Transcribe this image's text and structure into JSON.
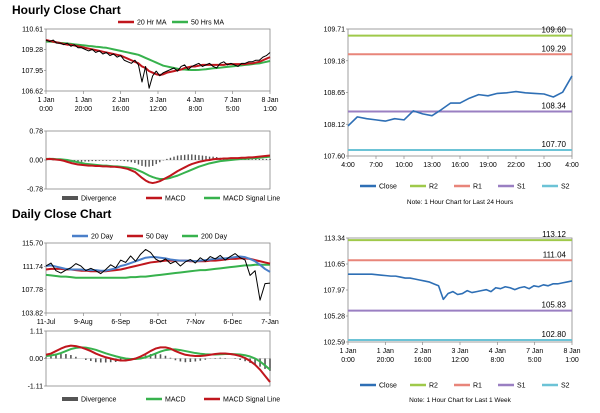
{
  "sections": {
    "hourly_title": "Hourly Close Chart",
    "daily_title": "Daily Close Chart"
  },
  "colors": {
    "close": "#2e6fb5",
    "ma_red": "#c0161d",
    "ma_green": "#37b24d",
    "ma_blue": "#4a7fc9",
    "r2": "#9fc94a",
    "r1": "#e8857a",
    "s1": "#9a7fc2",
    "s2": "#6cc3d6",
    "divergence": "#555555",
    "macd": "#c0161d",
    "signal": "#37b24d",
    "price_black": "#000000"
  },
  "chart_data": [
    {
      "id": "hourly_price",
      "type": "line",
      "ylim": [
        106.62,
        110.61
      ],
      "yticks": [
        "110.61",
        "109.28",
        "107.95",
        "106.62"
      ],
      "xticks": [
        "1 Jan\n0:00",
        "1 Jan\n20:00",
        "2 Jan\n16:00",
        "3 Jan\n12:00",
        "4 Jan\n8:00",
        "7 Jan\n5:00",
        "8 Jan\n1:00"
      ],
      "legend": [
        "20 Hr MA",
        "50 Hrs MA"
      ],
      "series": [
        {
          "name": "Price",
          "values": [
            109.9,
            109.8,
            109.9,
            109.7,
            109.7,
            109.6,
            109.7,
            109.5,
            109.6,
            109.4,
            109.4,
            109.3,
            109.2,
            109.3,
            109.1,
            109.2,
            109.0,
            109.1,
            108.9,
            109.0,
            108.8,
            108.9,
            108.6,
            108.5,
            108.4,
            108.6,
            108.3,
            107.2,
            108.2,
            106.8,
            107.6,
            107.9,
            107.6,
            107.8,
            107.9,
            108.0,
            108.1,
            107.9,
            108.2,
            108.3,
            108.0,
            108.2,
            108.3,
            108.4,
            108.2,
            108.3,
            108.4,
            108.2,
            108.1,
            108.4,
            108.5,
            108.3,
            108.4,
            108.3,
            108.2,
            108.4,
            108.4,
            108.5,
            108.5,
            108.6,
            108.6,
            108.8,
            108.9,
            109.1
          ]
        },
        {
          "name": "20 Hr MA",
          "values": [
            109.9,
            109.85,
            109.8,
            109.75,
            109.7,
            109.65,
            109.6,
            109.6,
            109.55,
            109.5,
            109.45,
            109.4,
            109.35,
            109.3,
            109.25,
            109.2,
            109.15,
            109.1,
            109.05,
            109.0,
            108.95,
            108.9,
            108.8,
            108.7,
            108.6,
            108.5,
            108.4,
            108.2,
            108.1,
            107.9,
            107.8,
            107.7,
            107.65,
            107.7,
            107.8,
            107.85,
            107.9,
            107.95,
            108.0,
            108.1,
            108.15,
            108.2,
            108.2,
            108.25,
            108.3,
            108.3,
            108.3,
            108.3,
            108.3,
            108.3,
            108.3,
            108.35,
            108.35,
            108.35,
            108.35,
            108.35,
            108.35,
            108.4,
            108.4,
            108.45,
            108.5,
            108.6,
            108.7,
            108.8
          ]
        },
        {
          "name": "50 Hrs MA",
          "values": [
            109.8,
            109.8,
            109.78,
            109.75,
            109.72,
            109.7,
            109.68,
            109.65,
            109.62,
            109.6,
            109.57,
            109.55,
            109.52,
            109.5,
            109.47,
            109.45,
            109.42,
            109.4,
            109.35,
            109.3,
            109.25,
            109.2,
            109.15,
            109.1,
            109.05,
            109.0,
            108.95,
            108.85,
            108.75,
            108.65,
            108.55,
            108.45,
            108.35,
            108.25,
            108.2,
            108.15,
            108.1,
            108.05,
            108.0,
            108.0,
            107.98,
            107.97,
            107.97,
            107.98,
            108.0,
            108.02,
            108.05,
            108.08,
            108.1,
            108.12,
            108.15,
            108.17,
            108.2,
            108.22,
            108.25,
            108.27,
            108.3,
            108.32,
            108.35,
            108.38,
            108.4,
            108.45,
            108.5,
            108.55
          ]
        }
      ]
    },
    {
      "id": "hourly_macd",
      "type": "line",
      "ylim": [
        -0.78,
        0.78
      ],
      "yticks": [
        "0.78",
        "0.00",
        "-0.78"
      ],
      "legend": [
        "Divergence",
        "MACD",
        "MACD Signal Line"
      ],
      "series": [
        {
          "name": "MACD",
          "values": [
            0.02,
            0.03,
            0.02,
            0.01,
            0.0,
            -0.02,
            -0.05,
            -0.08,
            -0.1,
            -0.12,
            -0.13,
            -0.14,
            -0.15,
            -0.15,
            -0.16,
            -0.16,
            -0.17,
            -0.17,
            -0.18,
            -0.18,
            -0.19,
            -0.2,
            -0.22,
            -0.24,
            -0.28,
            -0.32,
            -0.4,
            -0.48,
            -0.55,
            -0.6,
            -0.62,
            -0.6,
            -0.57,
            -0.52,
            -0.47,
            -0.42,
            -0.36,
            -0.3,
            -0.25,
            -0.2,
            -0.15,
            -0.11,
            -0.08,
            -0.05,
            -0.03,
            -0.01,
            0.0,
            0.02,
            0.03,
            0.03,
            0.04,
            0.04,
            0.05,
            0.05,
            0.05,
            0.06,
            0.06,
            0.07,
            0.07,
            0.08,
            0.09,
            0.1,
            0.11,
            0.12
          ]
        },
        {
          "name": "MACD Signal Line",
          "values": [
            0.03,
            0.03,
            0.03,
            0.02,
            0.02,
            0.01,
            0.0,
            -0.02,
            -0.04,
            -0.06,
            -0.08,
            -0.1,
            -0.11,
            -0.12,
            -0.13,
            -0.14,
            -0.15,
            -0.15,
            -0.16,
            -0.17,
            -0.17,
            -0.18,
            -0.19,
            -0.2,
            -0.22,
            -0.24,
            -0.28,
            -0.32,
            -0.37,
            -0.42,
            -0.46,
            -0.49,
            -0.51,
            -0.51,
            -0.5,
            -0.48,
            -0.45,
            -0.42,
            -0.38,
            -0.34,
            -0.3,
            -0.26,
            -0.22,
            -0.18,
            -0.15,
            -0.12,
            -0.09,
            -0.07,
            -0.05,
            -0.03,
            -0.02,
            -0.01,
            0.0,
            0.01,
            0.02,
            0.03,
            0.03,
            0.04,
            0.05,
            0.05,
            0.06,
            0.07,
            0.08,
            0.09
          ]
        }
      ]
    },
    {
      "id": "hourly_24h",
      "type": "line",
      "ylim": [
        107.6,
        109.71
      ],
      "yticks": [
        "109.71",
        "109.18",
        "108.65",
        "108.12",
        "107.60"
      ],
      "xticks": [
        "4:00",
        "7:00",
        "10:00",
        "13:00",
        "16:00",
        "19:00",
        "22:00",
        "1:00",
        "4:00"
      ],
      "legend": [
        "Close",
        "R2",
        "R1",
        "S1",
        "S2"
      ],
      "levels": {
        "R2": 109.6,
        "R1": 109.29,
        "S1": 108.34,
        "S2": 107.7
      },
      "level_labels": {
        "R2": "109.60",
        "R1": "109.29",
        "S1": "108.34",
        "S2": "107.70"
      },
      "note": "Note: 1 Hour Chart for Last 24 Hours",
      "series": [
        {
          "name": "Close",
          "values": [
            108.1,
            108.25,
            108.22,
            108.2,
            108.18,
            108.22,
            108.2,
            108.35,
            108.3,
            108.27,
            108.37,
            108.48,
            108.48,
            108.56,
            108.62,
            108.6,
            108.64,
            108.65,
            108.67,
            108.65,
            108.64,
            108.63,
            108.58,
            108.66,
            108.93
          ]
        }
      ]
    },
    {
      "id": "daily_price",
      "type": "line",
      "ylim": [
        103.82,
        115.7
      ],
      "yticks": [
        "115.70",
        "111.74",
        "107.78",
        "103.82"
      ],
      "xticks": [
        "11-Jul",
        "9-Aug",
        "6-Sep",
        "8-Oct",
        "7-Nov",
        "6-Dec",
        "7-Jan"
      ],
      "legend": [
        "20 Day",
        "50 Day",
        "200 Day"
      ],
      "series": [
        {
          "name": "Price",
          "values": [
            111.8,
            112.3,
            111.0,
            110.6,
            111.1,
            111.5,
            112.2,
            111.8,
            111.0,
            111.4,
            111.0,
            110.5,
            111.2,
            112.0,
            111.5,
            112.8,
            112.4,
            113.5,
            112.6,
            113.8,
            114.6,
            114.1,
            113.0,
            112.5,
            113.0,
            112.2,
            112.6,
            111.8,
            112.5,
            112.9,
            112.3,
            113.2,
            112.6,
            113.4,
            113.0,
            113.6,
            112.8,
            113.4,
            113.9,
            113.2,
            112.8,
            110.2,
            111.0,
            106.0,
            108.8,
            108.9
          ]
        },
        {
          "name": "20 Day",
          "values": [
            111.8,
            111.9,
            111.7,
            111.5,
            111.3,
            111.2,
            111.2,
            111.2,
            111.1,
            111.1,
            111.1,
            111.0,
            111.0,
            111.2,
            111.4,
            111.8,
            112.0,
            112.3,
            112.6,
            112.9,
            113.2,
            113.3,
            113.3,
            113.2,
            113.1,
            112.9,
            112.8,
            112.7,
            112.7,
            112.7,
            112.6,
            112.7,
            112.8,
            112.9,
            113.0,
            113.1,
            113.1,
            113.2,
            113.3,
            113.4,
            113.3,
            113.0,
            112.6,
            112.0,
            111.3,
            110.8
          ]
        },
        {
          "name": "50 Day",
          "values": [
            111.2,
            111.3,
            111.3,
            111.3,
            111.2,
            111.2,
            111.1,
            111.0,
            111.0,
            110.9,
            110.9,
            110.9,
            110.9,
            111.0,
            111.1,
            111.2,
            111.4,
            111.6,
            111.8,
            112.0,
            112.2,
            112.4,
            112.5,
            112.6,
            112.7,
            112.7,
            112.7,
            112.7,
            112.7,
            112.6,
            112.6,
            112.6,
            112.6,
            112.7,
            112.7,
            112.8,
            112.9,
            113.0,
            113.0,
            113.1,
            113.1,
            113.0,
            112.8,
            112.6,
            112.4,
            112.2
          ]
        },
        {
          "name": "200 Day",
          "values": [
            110.3,
            110.2,
            110.1,
            110.0,
            110.0,
            109.9,
            109.8,
            109.8,
            109.8,
            109.8,
            109.8,
            109.8,
            109.8,
            109.8,
            109.8,
            109.8,
            109.8,
            109.9,
            109.9,
            110.0,
            110.0,
            110.1,
            110.2,
            110.3,
            110.4,
            110.5,
            110.6,
            110.7,
            110.8,
            110.9,
            111.0,
            111.1,
            111.1,
            111.2,
            111.3,
            111.4,
            111.5,
            111.6,
            111.7,
            111.8,
            111.9,
            111.9,
            112.0,
            112.0,
            112.0,
            112.0
          ]
        }
      ]
    },
    {
      "id": "daily_macd",
      "type": "line",
      "ylim": [
        -1.11,
        1.11
      ],
      "yticks": [
        "1.11",
        "0.00",
        "-1.11"
      ],
      "legend": [
        "Divergence",
        "MACD",
        "MACD Signal Line"
      ],
      "series": [
        {
          "name": "MACD",
          "values": [
            0.15,
            0.2,
            0.3,
            0.4,
            0.48,
            0.52,
            0.5,
            0.45,
            0.38,
            0.3,
            0.2,
            0.12,
            0.05,
            0.0,
            -0.05,
            -0.08,
            -0.08,
            -0.05,
            0.0,
            0.08,
            0.18,
            0.3,
            0.4,
            0.45,
            0.45,
            0.4,
            0.3,
            0.22,
            0.15,
            0.12,
            0.1,
            0.1,
            0.12,
            0.15,
            0.18,
            0.2,
            0.2,
            0.18,
            0.15,
            0.1,
            0.02,
            -0.1,
            -0.25,
            -0.45,
            -0.7,
            -0.95
          ]
        },
        {
          "name": "MACD Signal Line",
          "values": [
            0.1,
            0.12,
            0.16,
            0.22,
            0.3,
            0.38,
            0.43,
            0.45,
            0.44,
            0.4,
            0.35,
            0.28,
            0.21,
            0.15,
            0.09,
            0.04,
            0.0,
            -0.02,
            -0.02,
            0.0,
            0.05,
            0.12,
            0.2,
            0.28,
            0.34,
            0.37,
            0.37,
            0.34,
            0.3,
            0.26,
            0.22,
            0.19,
            0.17,
            0.16,
            0.16,
            0.17,
            0.18,
            0.18,
            0.17,
            0.16,
            0.13,
            0.08,
            0.0,
            -0.12,
            -0.28,
            -0.45
          ]
        }
      ]
    },
    {
      "id": "daily_week",
      "type": "line",
      "ylim": [
        102.59,
        113.34
      ],
      "yticks": [
        "113.34",
        "110.65",
        "107.97",
        "105.28",
        "102.59"
      ],
      "xticks": [
        "1 Jan\n0:00",
        "1 Jan\n20:00",
        "2 Jan\n16:00",
        "3 Jan\n12:00",
        "4 Jan\n8:00",
        "7 Jan\n5:00",
        "8 Jan\n1:00"
      ],
      "legend": [
        "Close",
        "R2",
        "R1",
        "S1",
        "S2"
      ],
      "levels": {
        "R2": 113.12,
        "R1": 111.04,
        "S1": 105.83,
        "S2": 102.8
      },
      "level_labels": {
        "R2": "113.12",
        "R1": "111.04",
        "S1": "105.83",
        "S2": "102.80"
      },
      "note": "Note: 1 Hour Chart for Last 1 Week",
      "series": [
        {
          "name": "Close",
          "values": [
            109.6,
            109.6,
            109.6,
            109.6,
            109.6,
            109.6,
            109.55,
            109.5,
            109.45,
            109.4,
            109.4,
            109.3,
            109.2,
            109.2,
            109.1,
            109.0,
            108.9,
            108.8,
            108.6,
            108.4,
            107.0,
            107.6,
            107.8,
            107.5,
            107.6,
            107.9,
            107.7,
            107.8,
            107.9,
            108.0,
            107.8,
            108.2,
            108.1,
            108.3,
            108.2,
            108.0,
            108.2,
            108.3,
            108.1,
            108.4,
            108.3,
            108.5,
            108.4,
            108.6,
            108.6,
            108.7,
            108.8,
            108.9
          ]
        }
      ]
    }
  ]
}
